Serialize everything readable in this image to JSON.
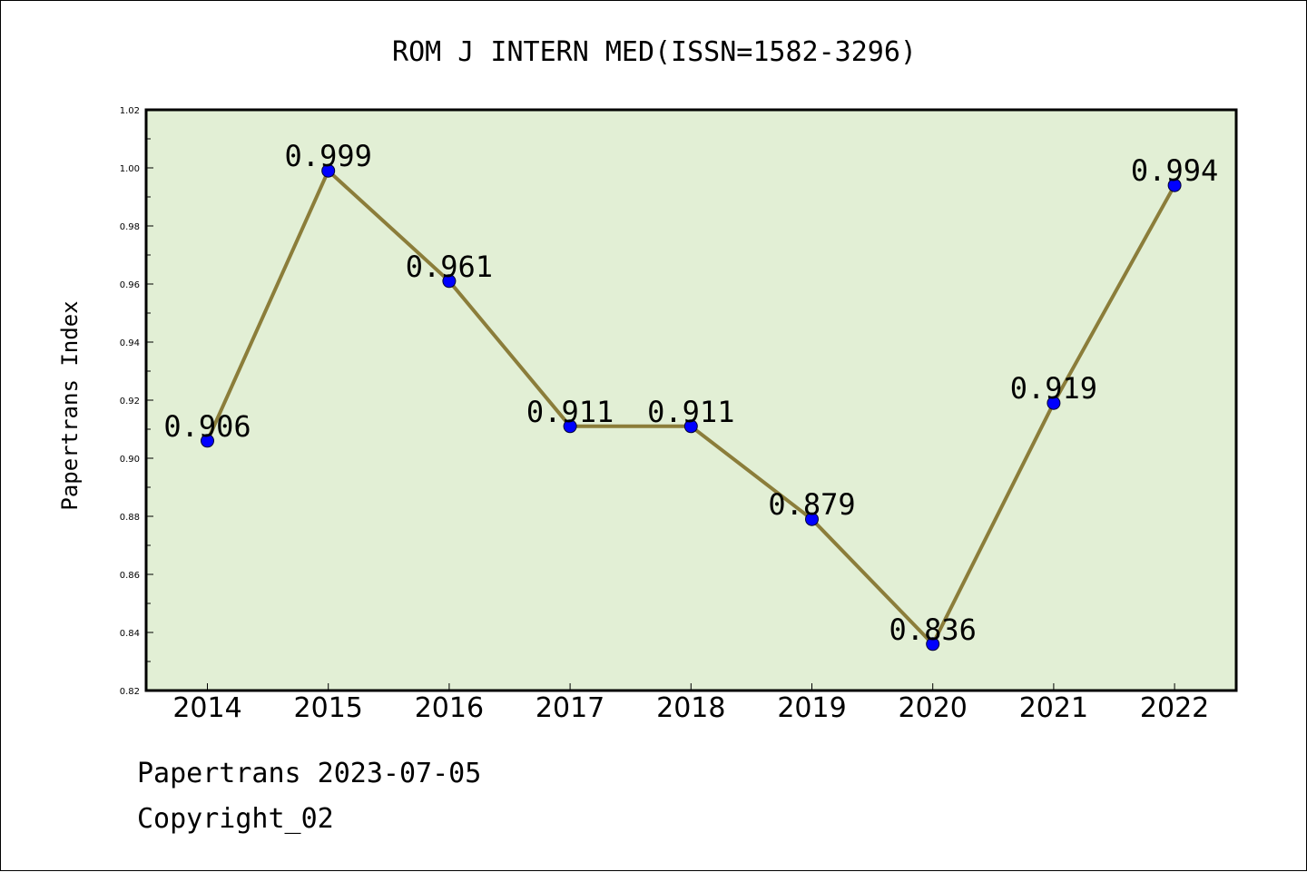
{
  "chart_data": {
    "type": "line",
    "title": "ROM J INTERN MED(ISSN=1582-3296)",
    "xlabel": "",
    "ylabel": "Papertrans Index",
    "categories": [
      "2014",
      "2015",
      "2016",
      "2017",
      "2018",
      "2019",
      "2020",
      "2021",
      "2022"
    ],
    "values": [
      0.906,
      0.999,
      0.961,
      0.911,
      0.911,
      0.879,
      0.836,
      0.919,
      0.994
    ],
    "data_labels": [
      "0.906",
      "0.999",
      "0.961",
      "0.911",
      "0.911",
      "0.879",
      "0.836",
      "0.919",
      "0.994"
    ],
    "ylim": [
      0.82,
      1.02
    ],
    "yticks": [
      0.82,
      0.84,
      0.86,
      0.88,
      0.9,
      0.92,
      0.94,
      0.96,
      0.98,
      1.0,
      1.02
    ],
    "ytick_labels": [
      "0.82",
      "0.84",
      "0.86",
      "0.88",
      "0.90",
      "0.92",
      "0.94",
      "0.96",
      "0.98",
      "1.00",
      "1.02"
    ],
    "grid": false,
    "colors": {
      "plot_background": "#e2efd5",
      "line": "#8b7d3a",
      "marker": "#0000ff"
    }
  },
  "footer": {
    "line1": "Papertrans 2023-07-05",
    "line2": "Copyright_02"
  }
}
